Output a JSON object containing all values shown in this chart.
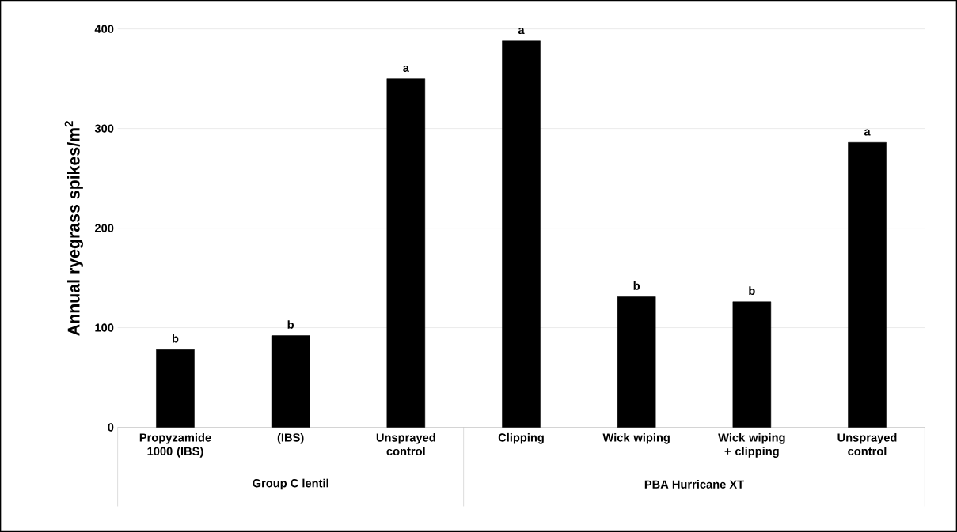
{
  "chart_data": {
    "type": "bar",
    "ylabel": "Annual ryegrass spikes/m$^{2}$",
    "categories": [
      "Propyzamide 1000 (IBS)",
      "(IBS)",
      "Unsprayed control",
      "Clipping",
      "Wick wiping",
      "Wick wiping + clipping",
      "Unsprayed control"
    ],
    "values": [
      78,
      92,
      350,
      388,
      131,
      126,
      286
    ],
    "value_labels": [
      "b",
      "b",
      "a",
      "a",
      "b",
      "b",
      "a"
    ],
    "color": "#000000",
    "ylim": [
      0,
      400
    ],
    "yticks": [
      0,
      100,
      200,
      300,
      400
    ],
    "grid": "y",
    "annotations": [
      "Group C lentil",
      "PBA Hurricane XT"
    ]
  }
}
